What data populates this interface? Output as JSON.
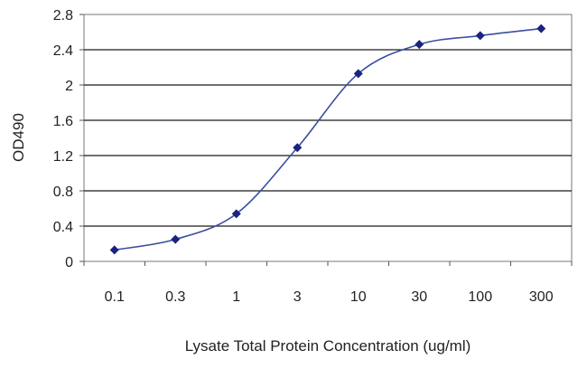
{
  "chart_data": {
    "type": "line",
    "title": "",
    "xlabel": "Lysate Total Protein Concentration (ug/ml)",
    "ylabel": "OD490",
    "categories": [
      "0.1",
      "0.3",
      "1",
      "3",
      "10",
      "30",
      "100",
      "300"
    ],
    "x": [
      0.1,
      0.3,
      1,
      3,
      10,
      30,
      100,
      300
    ],
    "xscale": "log",
    "series": [
      {
        "values": [
          0.13,
          0.25,
          0.54,
          1.29,
          2.13,
          2.46,
          2.56,
          2.64
        ]
      }
    ],
    "ylim": [
      0,
      2.8
    ],
    "yticks": [
      "0",
      "0.4",
      "0.8",
      "1.2",
      "1.6",
      "2",
      "2.4",
      "2.8"
    ],
    "grid": true,
    "legend": "none",
    "colors": {
      "line": "#3a4fa0",
      "marker": "#1a237e",
      "plot_background": "#ffffff",
      "grid": "#1a1a1a",
      "axis": "#555555"
    }
  }
}
